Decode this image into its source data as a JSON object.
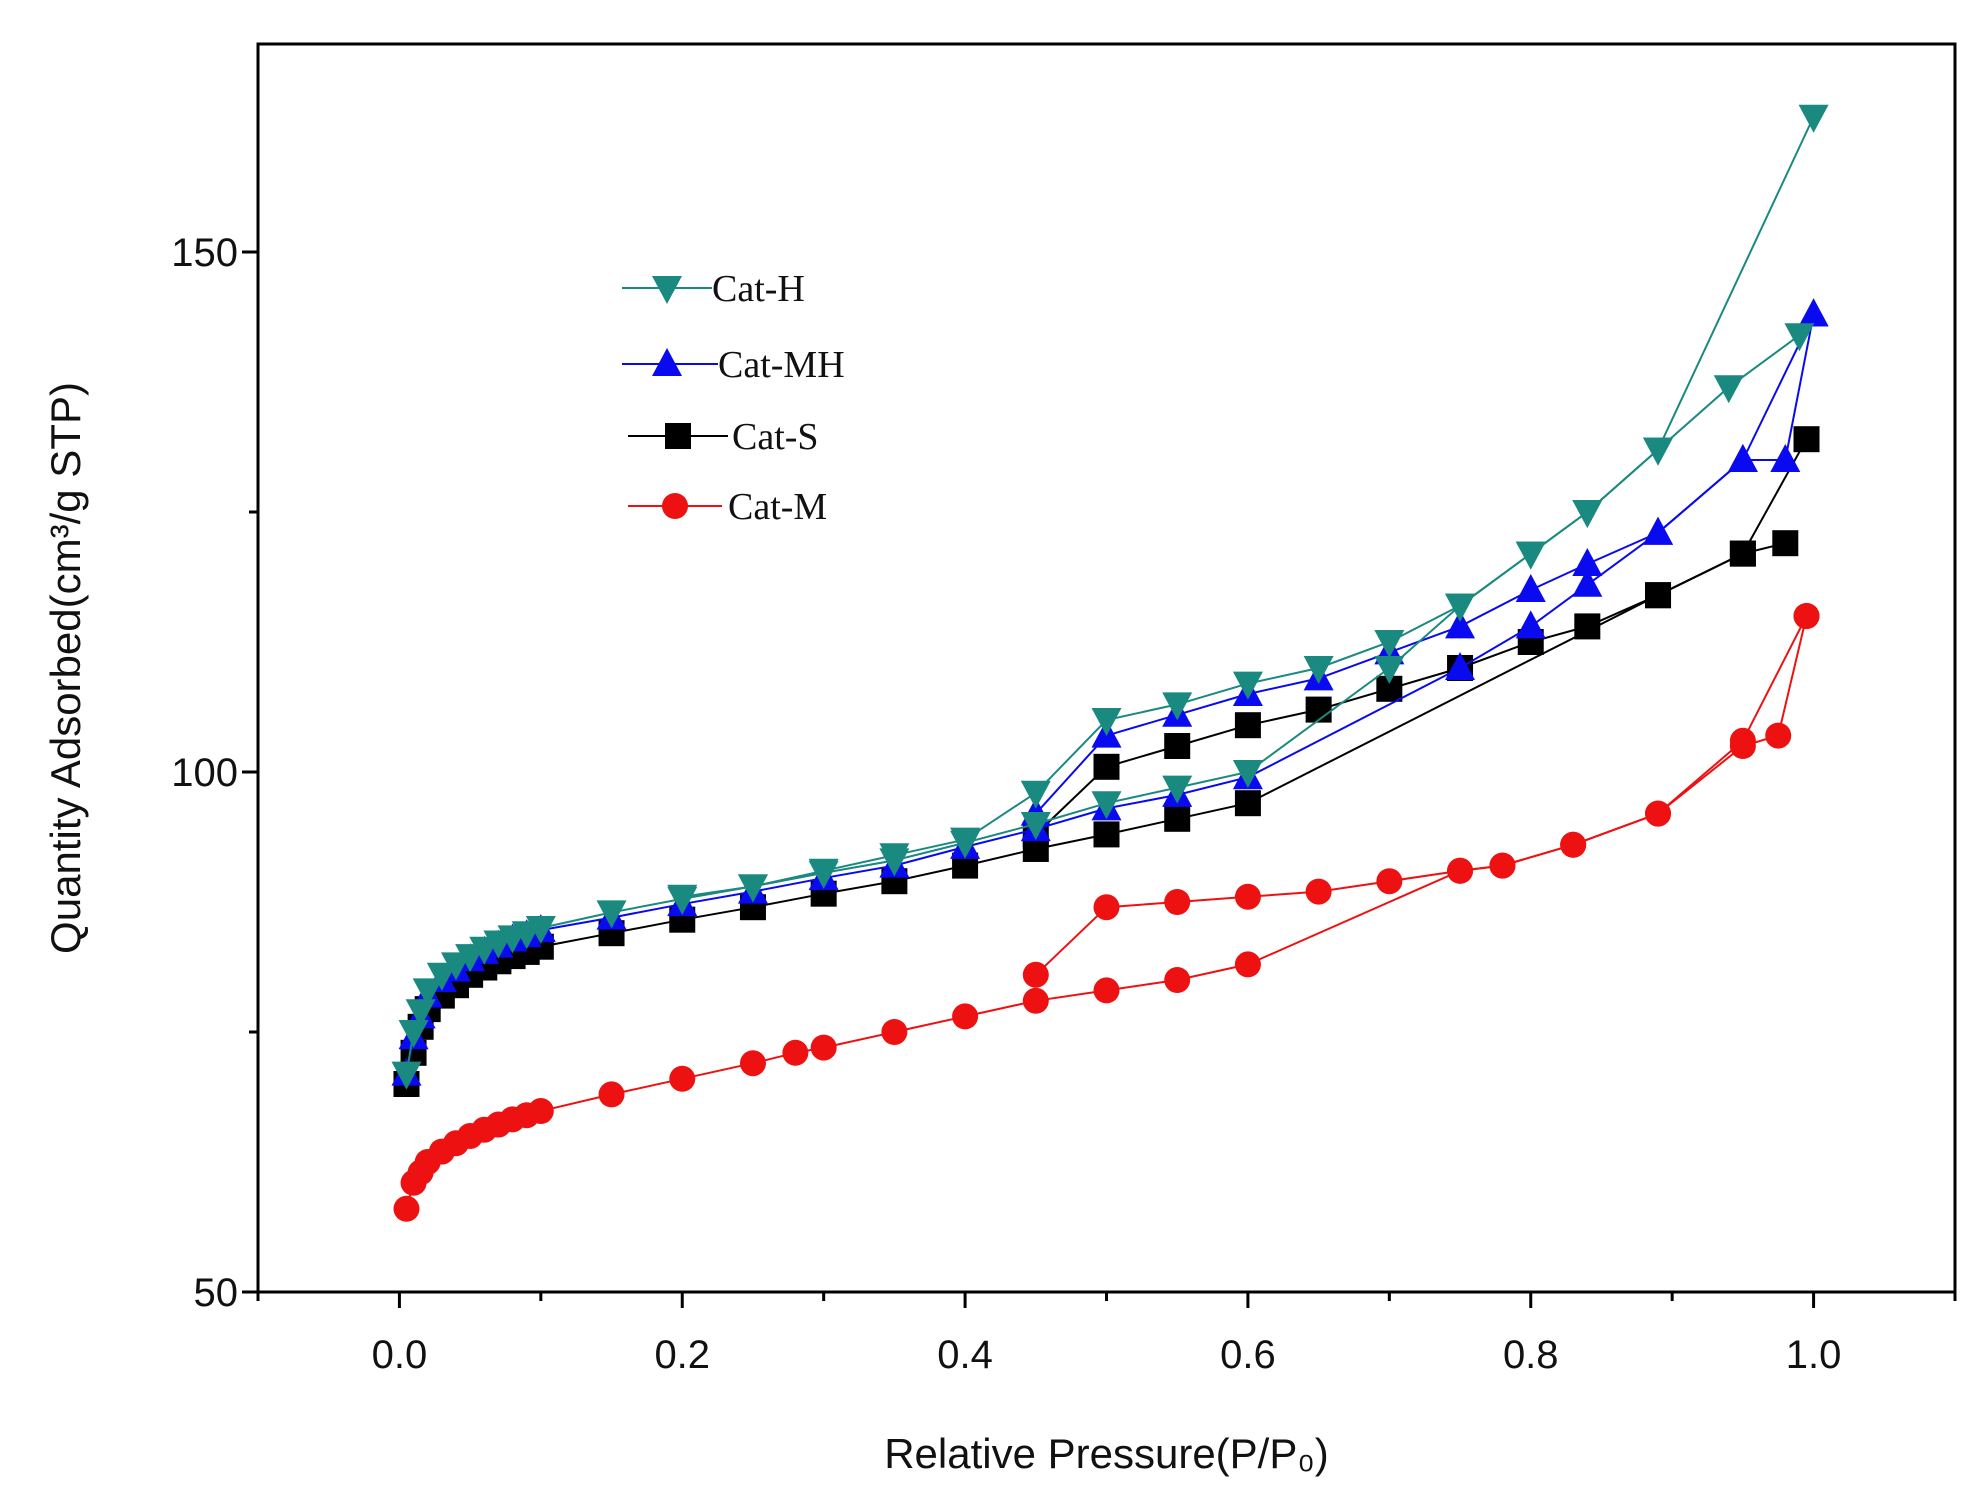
{
  "chart_data": {
    "type": "line",
    "title": "",
    "xlabel": "Relative Pressure(P/P₀)",
    "ylabel": "Quantity Adsorbed(cm³/g STP)",
    "xlim": [
      -0.1,
      1.1
    ],
    "ylim": [
      50,
      170
    ],
    "xticks": [
      0.0,
      0.2,
      0.4,
      0.6,
      0.8,
      1.0
    ],
    "xtick_labels": [
      "0.0",
      "0.2",
      "0.4",
      "0.6",
      "0.8",
      "1.0"
    ],
    "yticks": [
      50,
      100,
      150
    ],
    "ytick_labels": [
      "50",
      "100",
      "150"
    ],
    "grid": false,
    "legend": "top-left",
    "series": [
      {
        "name": "Cat-H",
        "color": "#1a8a80",
        "marker": "triangle-down",
        "adsorption": {
          "x": [
            0.005,
            0.01,
            0.015,
            0.02,
            0.03,
            0.04,
            0.05,
            0.06,
            0.07,
            0.08,
            0.09,
            0.1,
            0.15,
            0.2,
            0.25,
            0.3,
            0.35,
            0.4,
            0.45,
            0.5,
            0.55,
            0.6,
            0.7,
            0.75,
            0.8,
            0.84,
            0.89,
            0.94,
            0.99
          ],
          "y": [
            71,
            75,
            77,
            79,
            80.5,
            81.5,
            82.3,
            83,
            83.6,
            84.1,
            84.5,
            85,
            86.5,
            87.8,
            89,
            90.3,
            91.5,
            93.2,
            95,
            97,
            98.5,
            100,
            110,
            116,
            121,
            125,
            131,
            137,
            142
          ]
        },
        "desorption": {
          "x": [
            1.0,
            0.89,
            0.84,
            0.8,
            0.75,
            0.7,
            0.65,
            0.6,
            0.55,
            0.5,
            0.45,
            0.4,
            0.35,
            0.3,
            0.25,
            0.2
          ],
          "y": [
            163,
            131,
            125,
            121,
            116,
            112.5,
            110,
            108.5,
            106.5,
            105,
            98,
            93.5,
            92,
            90.5,
            89,
            88
          ]
        }
      },
      {
        "name": "Cat-MH",
        "color": "#0a0af0",
        "marker": "triangle-up",
        "adsorption": {
          "x": [
            0.005,
            0.01,
            0.015,
            0.02,
            0.03,
            0.04,
            0.05,
            0.06,
            0.07,
            0.08,
            0.09,
            0.1,
            0.15,
            0.2,
            0.25,
            0.3,
            0.35,
            0.4,
            0.45,
            0.5,
            0.55,
            0.6,
            0.75,
            0.8,
            0.84,
            0.89,
            0.95,
            0.98,
            1.0
          ],
          "y": [
            71,
            74.5,
            76.5,
            78.5,
            80,
            81,
            82,
            82.7,
            83.3,
            83.9,
            84.3,
            84.8,
            86,
            87.3,
            88.5,
            89.8,
            91,
            92.8,
            94.5,
            96.5,
            97.8,
            99.5,
            110,
            114,
            118,
            123,
            130,
            130,
            144
          ]
        },
        "desorption": {
          "x": [
            1.0,
            0.95,
            0.89,
            0.84,
            0.8,
            0.75,
            0.7,
            0.65,
            0.6,
            0.55,
            0.5,
            0.45
          ],
          "y": [
            144,
            130,
            123,
            120,
            117.5,
            114,
            111.5,
            109,
            107.5,
            105.5,
            103.5,
            96
          ]
        }
      },
      {
        "name": "Cat-S",
        "color": "#000000",
        "marker": "square",
        "adsorption": {
          "x": [
            0.005,
            0.01,
            0.015,
            0.02,
            0.03,
            0.04,
            0.05,
            0.06,
            0.07,
            0.08,
            0.09,
            0.1,
            0.15,
            0.2,
            0.25,
            0.3,
            0.35,
            0.4,
            0.45,
            0.5,
            0.55,
            0.6,
            0.89,
            0.95,
            0.98
          ],
          "y": [
            70,
            73,
            75.5,
            77.2,
            78.5,
            79.5,
            80.5,
            81.2,
            81.8,
            82.3,
            82.7,
            83.2,
            84.5,
            85.8,
            87,
            88.3,
            89.5,
            91,
            92.6,
            94,
            95.5,
            97,
            117,
            121,
            122
          ]
        },
        "desorption": {
          "x": [
            0.995,
            0.95,
            0.89,
            0.84,
            0.8,
            0.75,
            0.7,
            0.65,
            0.6,
            0.55,
            0.5,
            0.45
          ],
          "y": [
            132,
            121,
            117,
            114,
            112.5,
            110,
            108,
            106,
            104.5,
            102.5,
            100.5,
            94
          ]
        }
      },
      {
        "name": "Cat-M",
        "color": "#ee1111",
        "marker": "circle",
        "adsorption": {
          "x": [
            0.005,
            0.01,
            0.015,
            0.02,
            0.03,
            0.04,
            0.05,
            0.06,
            0.07,
            0.08,
            0.09,
            0.1,
            0.15,
            0.2,
            0.25,
            0.28,
            0.3,
            0.35,
            0.4,
            0.45,
            0.5,
            0.55,
            0.6,
            0.75,
            0.78,
            0.83,
            0.89,
            0.95,
            0.995
          ],
          "y": [
            58,
            60.5,
            61.5,
            62.5,
            63.5,
            64.3,
            65,
            65.6,
            66.1,
            66.6,
            67,
            67.4,
            69,
            70.5,
            72,
            73,
            73.5,
            75,
            76.5,
            78,
            79,
            80,
            81.5,
            90.5,
            91,
            93,
            96,
            103,
            115
          ]
        },
        "desorption": {
          "x": [
            0.995,
            0.975,
            0.95,
            0.89,
            0.83,
            0.78,
            0.75,
            0.7,
            0.65,
            0.6,
            0.55,
            0.5,
            0.45
          ],
          "y": [
            115,
            103.5,
            102.5,
            96,
            93,
            91,
            90.5,
            89.5,
            88.5,
            88,
            87.5,
            87,
            80.5
          ]
        }
      }
    ]
  }
}
